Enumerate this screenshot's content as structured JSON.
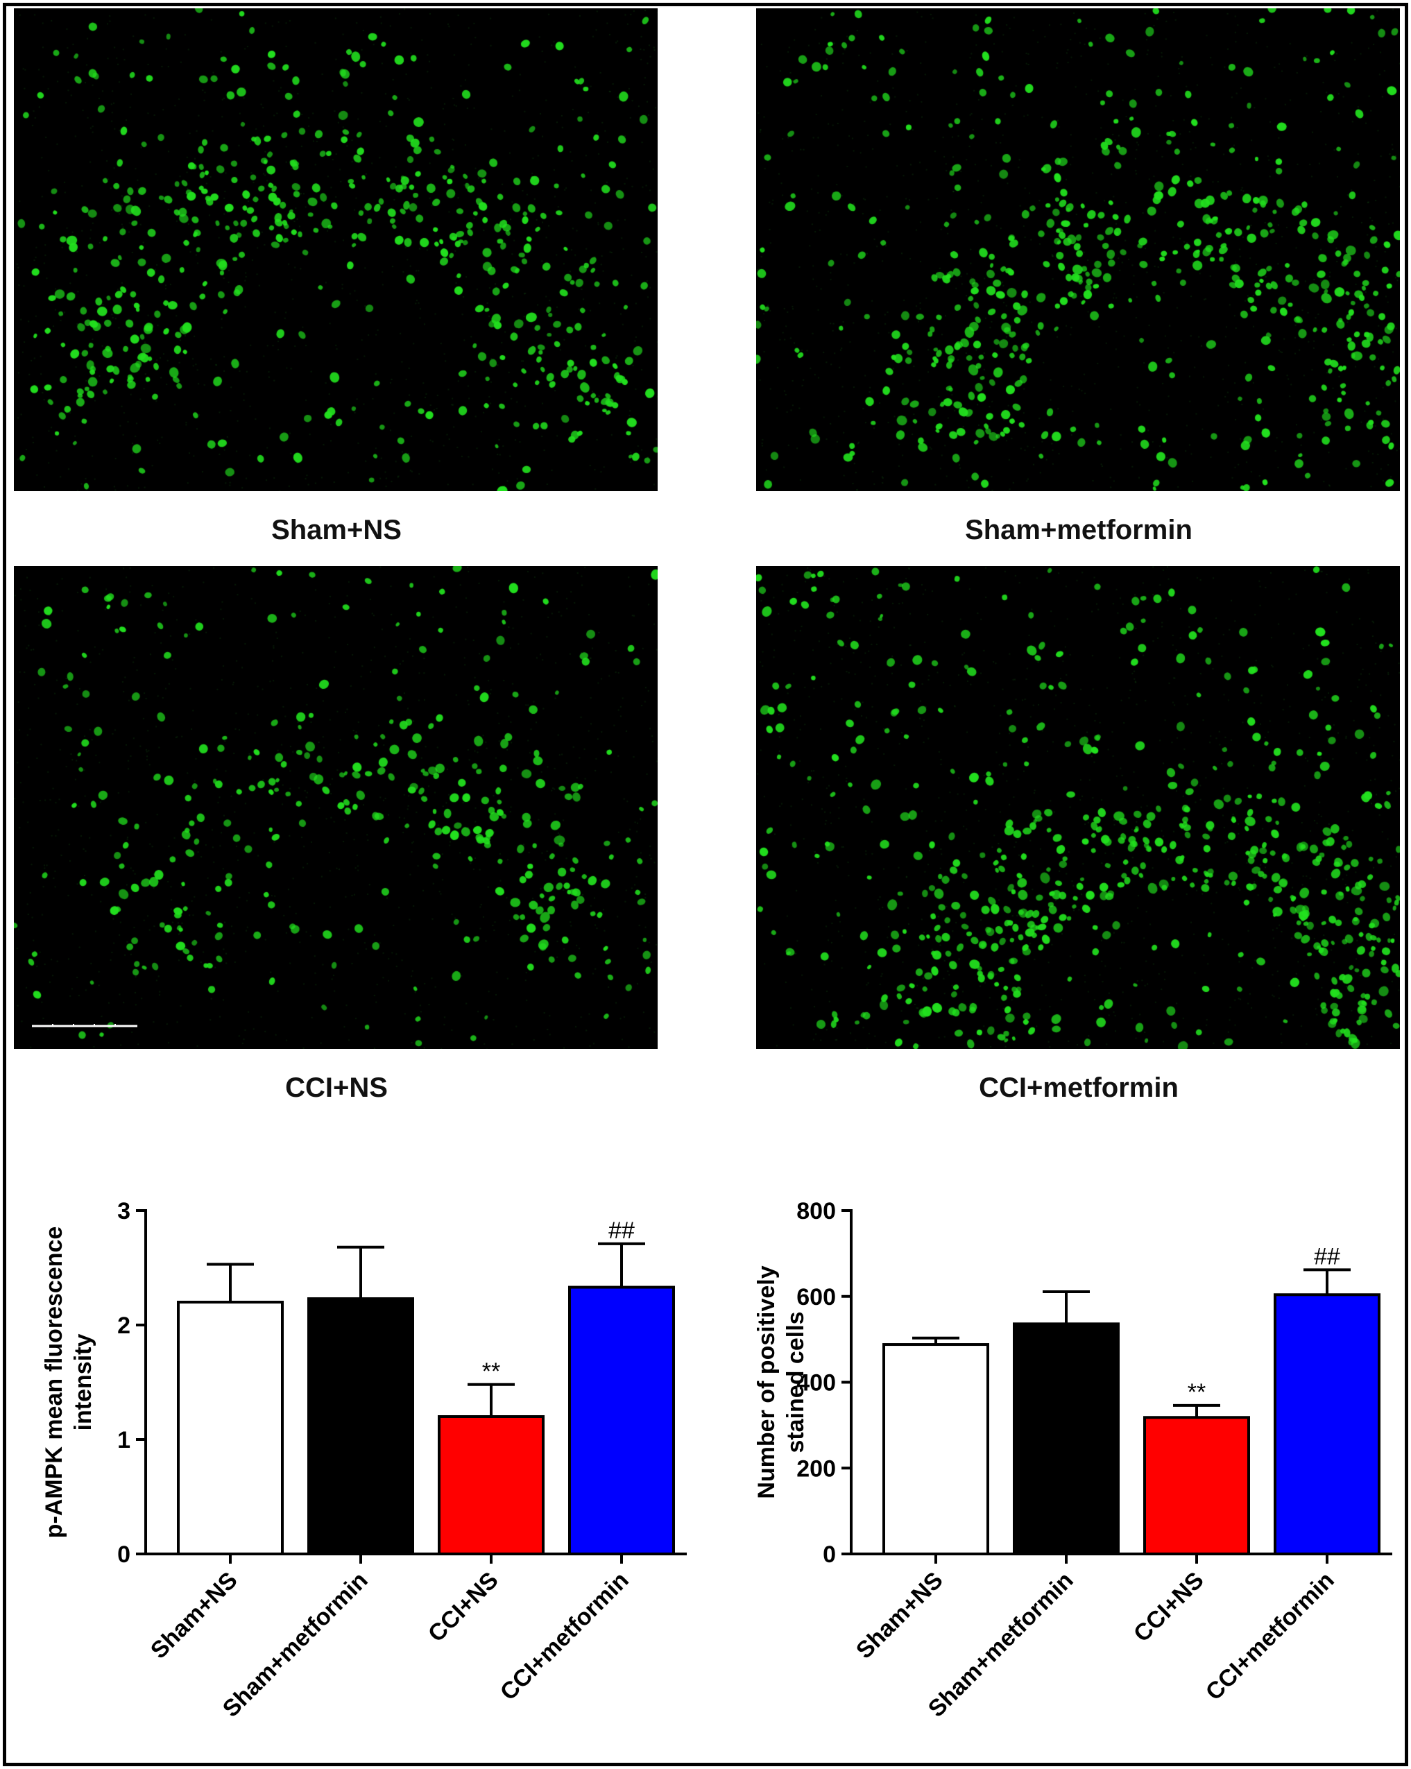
{
  "panels": [
    {
      "label": "Sham+NS",
      "cells": 520,
      "seed": 11,
      "density_center": [
        0.35,
        0.25
      ]
    },
    {
      "label": "Sham+metformin",
      "cells": 560,
      "seed": 23,
      "density_center": [
        0.5,
        0.35
      ]
    },
    {
      "label": "CCI+NS",
      "cells": 330,
      "seed": 37,
      "density_center": [
        0.4,
        0.3
      ]
    },
    {
      "label": "CCI+metformin",
      "cells": 620,
      "seed": 53,
      "density_center": [
        0.5,
        0.45
      ]
    }
  ],
  "colors": {
    "fluorescence": "#22e01e",
    "sham_ns": "#ffffff",
    "sham_metformin": "#000000",
    "cci_ns": "#ff0000",
    "cci_metformin": "#0000ff"
  },
  "chart_data": [
    {
      "type": "bar",
      "categories": [
        "Sham+NS",
        "Sham+metformin",
        "CCI+NS",
        "CCI+metformin"
      ],
      "values": [
        2.2,
        2.23,
        1.2,
        2.33
      ],
      "errors": [
        0.33,
        0.45,
        0.28,
        0.38
      ],
      "annotations": [
        "",
        "",
        "**",
        "##"
      ],
      "ylabel": "p-AMPK mean fluorescence intensity",
      "ylim": [
        0,
        3
      ],
      "yticks": [
        "0",
        "1",
        "2",
        "3"
      ],
      "bar_colors": [
        "#ffffff",
        "#000000",
        "#ff0000",
        "#0000ff"
      ]
    },
    {
      "type": "bar",
      "categories": [
        "Sham+NS",
        "Sham+metformin",
        "CCI+NS",
        "CCI+metformin"
      ],
      "values": [
        488,
        536,
        318,
        604
      ],
      "errors": [
        15,
        75,
        28,
        58
      ],
      "annotations": [
        "",
        "",
        "**",
        "##"
      ],
      "ylabel": "Number of positively stained cells",
      "ylim": [
        0,
        800
      ],
      "yticks": [
        "0",
        "200",
        "400",
        "600",
        "800"
      ],
      "bar_colors": [
        "#ffffff",
        "#000000",
        "#ff0000",
        "#0000ff"
      ]
    }
  ]
}
